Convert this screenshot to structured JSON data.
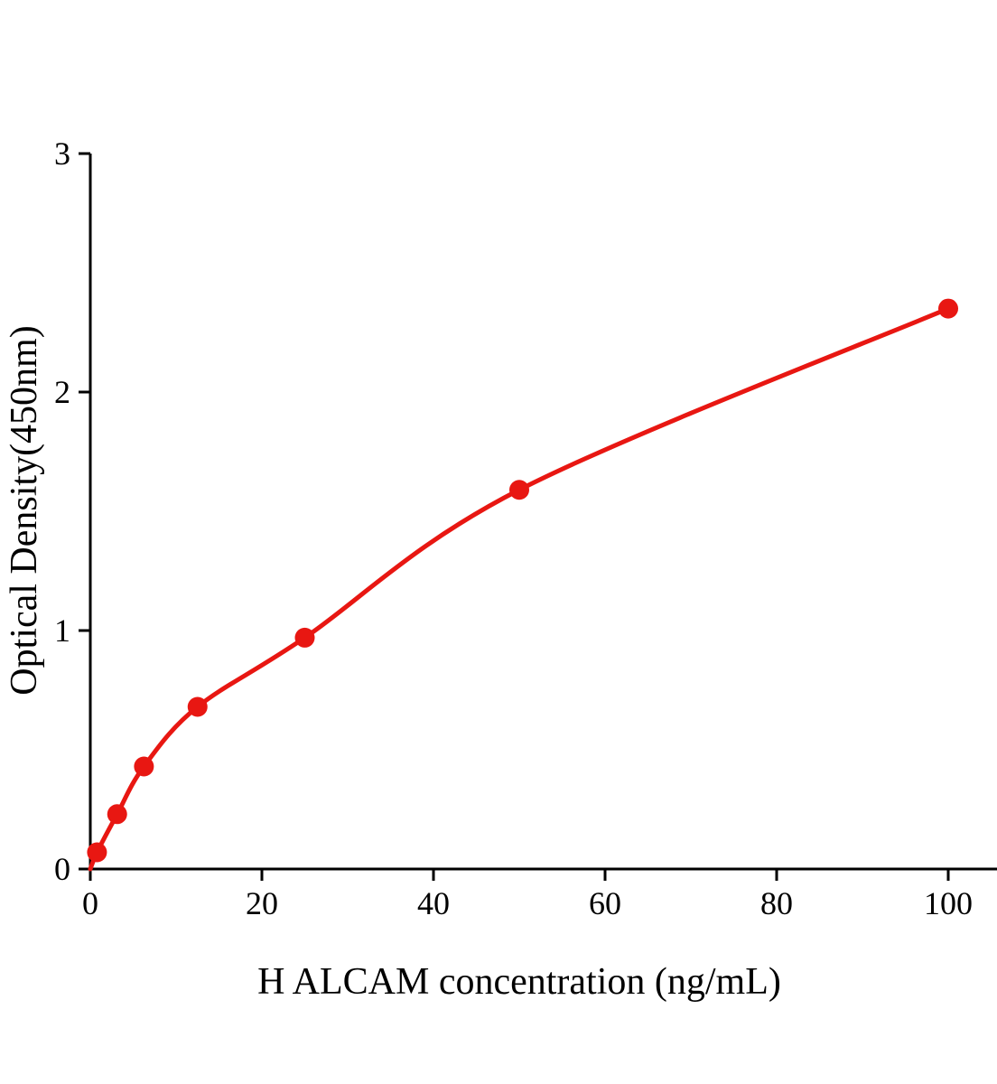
{
  "chart_data": {
    "type": "scatter",
    "title": "",
    "xlabel": "H ALCAM concentration (ng/mL)",
    "ylabel": "Optical Density(450nm)",
    "x": [
      0.78,
      3.13,
      6.25,
      12.5,
      25,
      50,
      100
    ],
    "y": [
      0.07,
      0.23,
      0.43,
      0.68,
      0.97,
      1.59,
      2.35
    ],
    "curve_start": {
      "x": 0,
      "y": 0
    },
    "xticks": [
      0,
      20,
      40,
      60,
      80,
      100
    ],
    "yticks": [
      0,
      1,
      2,
      3
    ],
    "xlim": [
      0,
      106
    ],
    "ylim": [
      0,
      3
    ],
    "grid": false,
    "legend_position": "none",
    "marker_color": "#e81712",
    "line_color": "#e81712",
    "axis_color": "#000000"
  }
}
